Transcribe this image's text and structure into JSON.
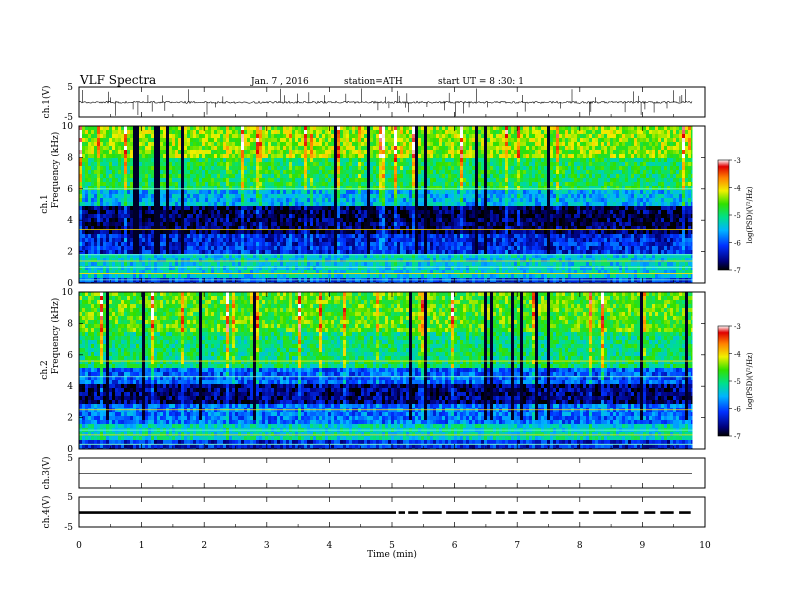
{
  "header": {
    "title": "VLF Spectra",
    "date": "Jan. 7 , 2016",
    "station": "station=ATH",
    "start": "start UT = 8 :30: 1"
  },
  "chart_data": [
    {
      "type": "line",
      "panel": "ch1-waveform",
      "ylabel": "ch.1(V)",
      "ylim": [
        -5,
        5
      ],
      "yticks": [
        "5",
        "-5"
      ],
      "baseline": -0.1,
      "noise": 0.35,
      "spike_count": 55
    },
    {
      "type": "heatmap",
      "panel": "ch1-spectrogram",
      "ylabel_line1": "ch.1",
      "ylabel_line2": "Frequency (kHz)",
      "ylim": [
        0,
        10
      ],
      "yticks": [
        "0",
        "2",
        "4",
        "6",
        "8",
        "10"
      ],
      "colorbar": {
        "label": "log(PSD)(V²/Hz)",
        "ticks": [
          "-3",
          "-4",
          "-5",
          "-6",
          "-7"
        ],
        "range": [
          -7,
          -3
        ]
      },
      "bands": [
        {
          "from": 0,
          "to": 0.5,
          "level": -6.2
        },
        {
          "from": 0.5,
          "to": 2.0,
          "level": -5.4
        },
        {
          "from": 2.0,
          "to": 3.2,
          "level": -6.3
        },
        {
          "from": 3.2,
          "to": 5.0,
          "level": -6.8
        },
        {
          "from": 5.0,
          "to": 6.0,
          "level": -5.6
        },
        {
          "from": 6.0,
          "to": 8.0,
          "level": -4.9
        },
        {
          "from": 8.0,
          "to": 10.0,
          "level": -4.4
        }
      ],
      "lines_khz": [
        0.2,
        0.6,
        1.0,
        1.4,
        1.8,
        3.4,
        6.0
      ]
    },
    {
      "type": "heatmap",
      "panel": "ch2-spectrogram",
      "ylabel_line1": "ch.2",
      "ylabel_line2": "Frequency (kHz)",
      "ylim": [
        0,
        10
      ],
      "yticks": [
        "0",
        "2",
        "4",
        "6",
        "8",
        "10"
      ],
      "colorbar": {
        "label": "log(PSD)(V²/Hz)",
        "ticks": [
          "-3",
          "-4",
          "-5",
          "-6",
          "-7"
        ],
        "range": [
          -7,
          -3
        ]
      },
      "bands": [
        {
          "from": 0,
          "to": 0.6,
          "level": -6.3
        },
        {
          "from": 0.6,
          "to": 1.6,
          "level": -5.3
        },
        {
          "from": 1.6,
          "to": 3.0,
          "level": -5.9
        },
        {
          "from": 3.0,
          "to": 4.3,
          "level": -6.7
        },
        {
          "from": 4.3,
          "to": 5.3,
          "level": -6.0
        },
        {
          "from": 5.3,
          "to": 7.5,
          "level": -5.0
        },
        {
          "from": 7.5,
          "to": 10.0,
          "level": -4.6
        }
      ],
      "lines_khz": [
        0.3,
        0.9,
        1.2,
        2.5,
        4.6,
        5.6
      ]
    },
    {
      "type": "line",
      "panel": "ch3-waveform",
      "ylabel": "ch.3(V)",
      "ylim": [
        -5,
        5
      ],
      "yticks": [
        "5"
      ],
      "baseline": -0.1,
      "noise": 0.0,
      "spike_count": 0
    },
    {
      "type": "line",
      "panel": "ch4-waveform",
      "ylabel": "ch.4(V)",
      "ylim": [
        -5,
        5
      ],
      "yticks": [
        "5",
        "-5"
      ],
      "baseline": -0.2,
      "noise": 0.15,
      "spike_count": 0,
      "gap_start_min": 4.8
    }
  ],
  "x_axis": {
    "label": "Time (min)",
    "xlim": [
      0,
      10
    ],
    "ticks": [
      "0",
      "1",
      "2",
      "3",
      "4",
      "5",
      "6",
      "7",
      "8",
      "9",
      "10"
    ],
    "data_end_min": 9.8
  }
}
